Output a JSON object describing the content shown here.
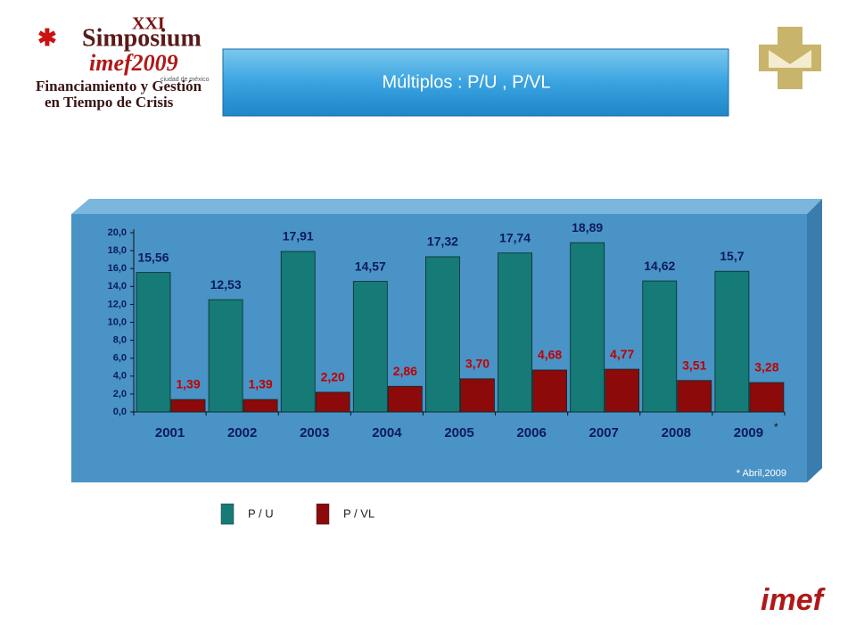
{
  "header": {
    "logo_edition": "XXI",
    "logo_event": "Simposium",
    "logo_brand": "imef2009",
    "logo_city": "ciudad de méxico",
    "logo_line1": "Financiamiento y Gestión",
    "logo_line2": "en Tiempo de Crisis",
    "footer_logo": "imef"
  },
  "chart_data": {
    "type": "bar",
    "title": "Múltiplos : P/U  , P/VL",
    "categories": [
      "2001",
      "2002",
      "2003",
      "2004",
      "2005",
      "2006",
      "2007",
      "2008",
      "2009"
    ],
    "series": [
      {
        "name": "P / U",
        "color": "#167a76",
        "values": [
          15.56,
          12.53,
          17.91,
          14.57,
          17.32,
          17.74,
          18.89,
          14.62,
          15.7
        ],
        "value_labels": [
          "15,56",
          "12,53",
          "17,91",
          "14,57",
          "17,32",
          "17,74",
          "18,89",
          "14,62",
          "15,7"
        ]
      },
      {
        "name": "P / VL",
        "color": "#8c0a0a",
        "values": [
          1.39,
          1.39,
          2.2,
          2.86,
          3.7,
          4.68,
          4.77,
          3.51,
          3.28
        ],
        "value_labels": [
          "1,39",
          "1,39",
          "2,20",
          "2,86",
          "3,70",
          "4,68",
          "4,77",
          "3,51",
          "3,28"
        ]
      }
    ],
    "ylim": [
      0,
      20
    ],
    "yticks": [
      {
        "value": 0,
        "label": "0,0"
      },
      {
        "value": 2,
        "label": "2,0"
      },
      {
        "value": 4,
        "label": "4,0"
      },
      {
        "value": 6,
        "label": "6,0"
      },
      {
        "value": 8,
        "label": "8,0"
      },
      {
        "value": 10,
        "label": "10,0"
      },
      {
        "value": 12,
        "label": "12,0"
      },
      {
        "value": 14,
        "label": "14,0"
      },
      {
        "value": 16,
        "label": "16,0"
      },
      {
        "value": 18,
        "label": "18,0"
      },
      {
        "value": 20,
        "label": "20,0"
      }
    ],
    "annotation": "*",
    "note": "* Abril,2009",
    "grid": false
  }
}
